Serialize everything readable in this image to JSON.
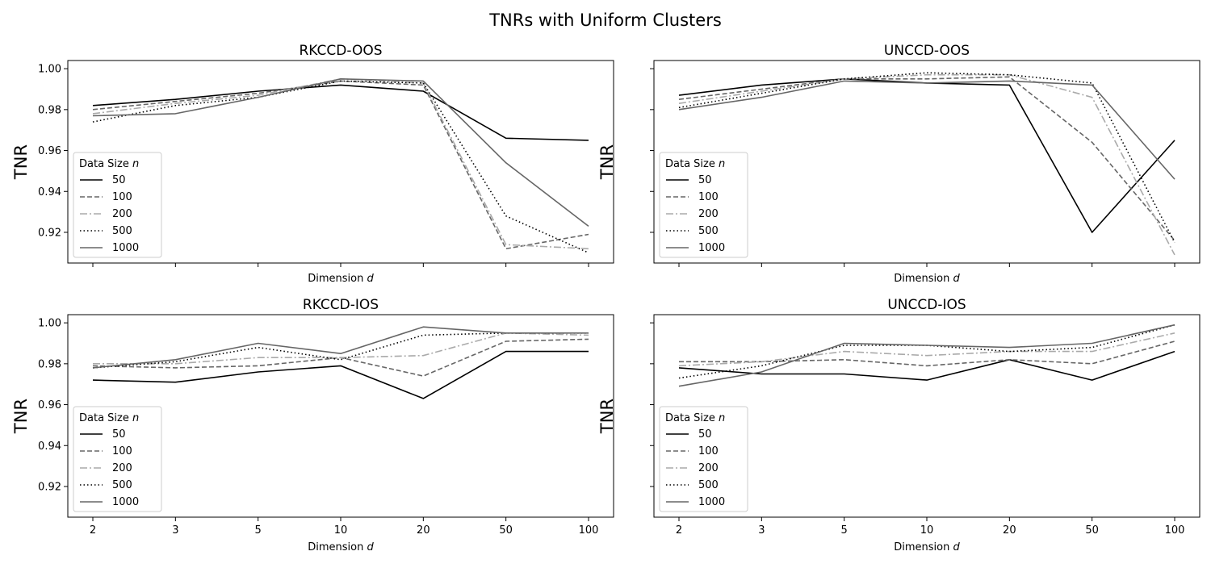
{
  "figure": {
    "title": "TNRs with Uniform Clusters"
  },
  "styles": {
    "50": {
      "color": "#000000",
      "dash": ""
    },
    "100": {
      "color": "#666666",
      "dash": "6,3"
    },
    "200": {
      "color": "#aaaaaa",
      "dash": "9,3,2,3"
    },
    "500": {
      "color": "#000000",
      "dash": "1.5,3"
    },
    "1000": {
      "color": "#666666",
      "dash": ""
    }
  },
  "chart_data": [
    {
      "type": "line",
      "title": "RKCCD-OOS",
      "xlabel": "Dimension d",
      "ylabel": "TNR",
      "categories": [
        "2",
        "3",
        "5",
        "10",
        "20",
        "50",
        "100"
      ],
      "ylim": [
        0.905,
        1.004
      ],
      "yticks": [
        "0.92",
        "0.94",
        "0.96",
        "0.98",
        "1.00"
      ],
      "show_xticklabels": false,
      "show_yticklabels": true,
      "legend_title": "Data Size n",
      "legend_position": "lower left",
      "series": [
        {
          "name": "50",
          "values": [
            0.982,
            0.985,
            0.989,
            0.992,
            0.989,
            0.966,
            0.965
          ]
        },
        {
          "name": "100",
          "values": [
            0.98,
            0.984,
            0.988,
            0.994,
            0.992,
            0.912,
            0.919
          ]
        },
        {
          "name": "200",
          "values": [
            0.978,
            0.983,
            0.987,
            0.995,
            0.993,
            0.914,
            0.912
          ]
        },
        {
          "name": "500",
          "values": [
            0.974,
            0.982,
            0.986,
            0.994,
            0.993,
            0.928,
            0.91
          ]
        },
        {
          "name": "1000",
          "values": [
            0.977,
            0.978,
            0.986,
            0.995,
            0.994,
            0.954,
            0.923
          ]
        }
      ]
    },
    {
      "type": "line",
      "title": "UNCCD-OOS",
      "xlabel": "Dimension d",
      "ylabel": "TNR",
      "categories": [
        "2",
        "3",
        "5",
        "10",
        "20",
        "50",
        "100"
      ],
      "ylim": [
        0.905,
        1.004
      ],
      "yticks": [
        "0.92",
        "0.94",
        "0.96",
        "0.98",
        "1.00"
      ],
      "show_xticklabels": false,
      "show_yticklabels": false,
      "legend_title": "Data Size n",
      "legend_position": "lower left",
      "series": [
        {
          "name": "50",
          "values": [
            0.987,
            0.992,
            0.995,
            0.993,
            0.992,
            0.92,
            0.965
          ]
        },
        {
          "name": "100",
          "values": [
            0.985,
            0.99,
            0.995,
            0.995,
            0.996,
            0.964,
            0.916
          ]
        },
        {
          "name": "200",
          "values": [
            0.983,
            0.989,
            0.995,
            0.997,
            0.997,
            0.986,
            0.909
          ]
        },
        {
          "name": "500",
          "values": [
            0.981,
            0.988,
            0.995,
            0.998,
            0.997,
            0.993,
            0.915
          ]
        },
        {
          "name": "1000",
          "values": [
            0.98,
            0.986,
            0.994,
            0.993,
            0.994,
            0.992,
            0.946
          ]
        }
      ]
    },
    {
      "type": "line",
      "title": "RKCCD-IOS",
      "xlabel": "Dimension d",
      "ylabel": "TNR",
      "categories": [
        "2",
        "3",
        "5",
        "10",
        "20",
        "50",
        "100"
      ],
      "ylim": [
        0.905,
        1.004
      ],
      "yticks": [
        "0.92",
        "0.94",
        "0.96",
        "0.98",
        "1.00"
      ],
      "show_xticklabels": true,
      "show_yticklabels": true,
      "legend_title": "Data Size n",
      "legend_position": "lower left",
      "series": [
        {
          "name": "50",
          "values": [
            0.972,
            0.971,
            0.976,
            0.979,
            0.963,
            0.986,
            0.986
          ]
        },
        {
          "name": "100",
          "values": [
            0.979,
            0.978,
            0.979,
            0.983,
            0.974,
            0.991,
            0.992
          ]
        },
        {
          "name": "200",
          "values": [
            0.98,
            0.98,
            0.983,
            0.983,
            0.984,
            0.995,
            0.994
          ]
        },
        {
          "name": "500",
          "values": [
            0.978,
            0.981,
            0.988,
            0.982,
            0.994,
            0.995,
            0.995
          ]
        },
        {
          "name": "1000",
          "values": [
            0.978,
            0.982,
            0.99,
            0.985,
            0.998,
            0.995,
            0.995
          ]
        }
      ]
    },
    {
      "type": "line",
      "title": "UNCCD-IOS",
      "xlabel": "Dimension d",
      "ylabel": "TNR",
      "categories": [
        "2",
        "3",
        "5",
        "10",
        "20",
        "50",
        "100"
      ],
      "ylim": [
        0.905,
        1.004
      ],
      "yticks": [
        "0.92",
        "0.94",
        "0.96",
        "0.98",
        "1.00"
      ],
      "show_xticklabels": true,
      "show_yticklabels": false,
      "legend_title": "Data Size n",
      "legend_position": "lower left",
      "series": [
        {
          "name": "50",
          "values": [
            0.978,
            0.975,
            0.975,
            0.972,
            0.982,
            0.972,
            0.986
          ]
        },
        {
          "name": "100",
          "values": [
            0.981,
            0.981,
            0.982,
            0.979,
            0.982,
            0.98,
            0.991
          ]
        },
        {
          "name": "200",
          "values": [
            0.979,
            0.981,
            0.986,
            0.984,
            0.986,
            0.986,
            0.995
          ]
        },
        {
          "name": "500",
          "values": [
            0.973,
            0.979,
            0.989,
            0.989,
            0.986,
            0.988,
            0.999
          ]
        },
        {
          "name": "1000",
          "values": [
            0.969,
            0.976,
            0.99,
            0.989,
            0.988,
            0.99,
            0.999
          ]
        }
      ]
    }
  ]
}
